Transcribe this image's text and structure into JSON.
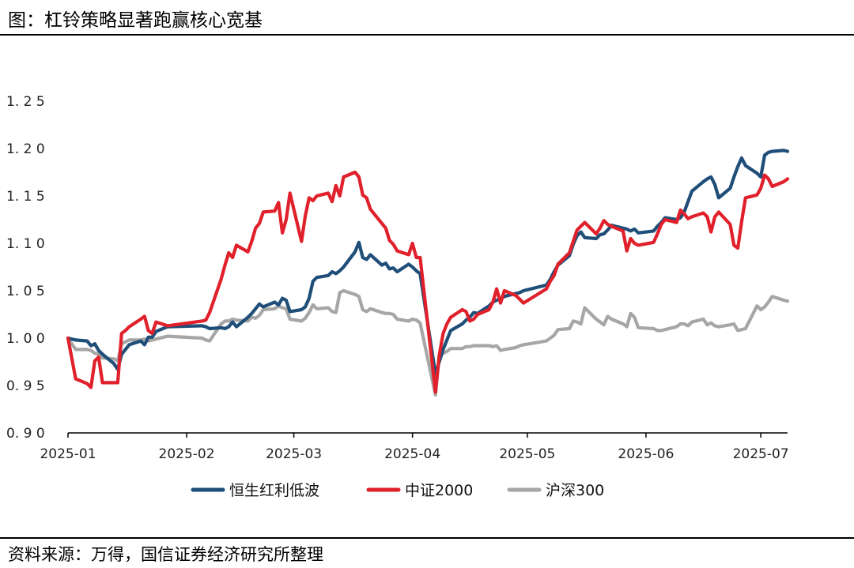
{
  "title": "图：杠铃策略显著跑赢核心宽基",
  "source": "资料来源：万得，国信证券经济研究所整理",
  "chart_data": {
    "type": "line",
    "x": [
      "2025-01-01",
      "2025-01-03",
      "2025-01-06",
      "2025-01-07",
      "2025-01-08",
      "2025-01-09",
      "2025-01-10",
      "2025-01-13",
      "2025-01-14",
      "2025-01-15",
      "2025-01-16",
      "2025-01-17",
      "2025-01-20",
      "2025-01-21",
      "2025-01-22",
      "2025-01-23",
      "2025-01-24",
      "2025-01-27",
      "2025-02-05",
      "2025-02-06",
      "2025-02-07",
      "2025-02-10",
      "2025-02-11",
      "2025-02-12",
      "2025-02-13",
      "2025-02-14",
      "2025-02-17",
      "2025-02-18",
      "2025-02-19",
      "2025-02-20",
      "2025-02-21",
      "2025-02-24",
      "2025-02-25",
      "2025-02-26",
      "2025-02-27",
      "2025-02-28",
      "2025-03-03",
      "2025-03-04",
      "2025-03-05",
      "2025-03-06",
      "2025-03-07",
      "2025-03-10",
      "2025-03-11",
      "2025-03-12",
      "2025-03-13",
      "2025-03-14",
      "2025-03-17",
      "2025-03-18",
      "2025-03-19",
      "2025-03-20",
      "2025-03-21",
      "2025-03-24",
      "2025-03-25",
      "2025-03-26",
      "2025-03-27",
      "2025-03-28",
      "2025-03-31",
      "2025-04-01",
      "2025-04-02",
      "2025-04-03",
      "2025-04-07",
      "2025-04-08",
      "2025-04-09",
      "2025-04-10",
      "2025-04-11",
      "2025-04-14",
      "2025-04-15",
      "2025-04-16",
      "2025-04-17",
      "2025-04-18",
      "2025-04-21",
      "2025-04-22",
      "2025-04-23",
      "2025-04-24",
      "2025-04-25",
      "2025-04-28",
      "2025-04-29",
      "2025-04-30",
      "2025-05-06",
      "2025-05-07",
      "2025-05-08",
      "2025-05-09",
      "2025-05-12",
      "2025-05-13",
      "2025-05-14",
      "2025-05-15",
      "2025-05-16",
      "2025-05-19",
      "2025-05-20",
      "2025-05-21",
      "2025-05-22",
      "2025-05-23",
      "2025-05-26",
      "2025-05-27",
      "2025-05-28",
      "2025-05-29",
      "2025-05-30",
      "2025-06-03",
      "2025-06-04",
      "2025-06-05",
      "2025-06-06",
      "2025-06-09",
      "2025-06-10",
      "2025-06-11",
      "2025-06-12",
      "2025-06-13",
      "2025-06-16",
      "2025-06-17",
      "2025-06-18",
      "2025-06-19",
      "2025-06-20",
      "2025-06-23",
      "2025-06-24",
      "2025-06-25",
      "2025-06-26",
      "2025-06-27",
      "2025-06-30",
      "2025-07-01",
      "2025-07-02",
      "2025-07-03",
      "2025-07-04",
      "2025-07-07",
      "2025-07-08"
    ],
    "series": [
      {
        "name": "恒生红利低波",
        "color": "#1f4e79",
        "values": [
          1.0,
          0.998,
          0.997,
          0.992,
          0.994,
          0.987,
          0.983,
          0.973,
          0.967,
          0.983,
          0.988,
          0.993,
          0.997,
          0.993,
          1.001,
          1.001,
          1.007,
          1.012,
          1.013,
          1.012,
          1.01,
          1.011,
          1.01,
          1.012,
          1.017,
          1.012,
          1.022,
          1.026,
          1.031,
          1.036,
          1.033,
          1.038,
          1.035,
          1.042,
          1.04,
          1.028,
          1.03,
          1.033,
          1.042,
          1.06,
          1.064,
          1.066,
          1.07,
          1.068,
          1.071,
          1.075,
          1.091,
          1.101,
          1.085,
          1.083,
          1.088,
          1.077,
          1.079,
          1.073,
          1.074,
          1.07,
          1.078,
          1.075,
          1.071,
          1.068,
          0.962,
          0.975,
          0.988,
          0.998,
          1.008,
          1.015,
          1.019,
          1.022,
          1.027,
          1.026,
          1.034,
          1.038,
          1.04,
          1.041,
          1.044,
          1.047,
          1.048,
          1.05,
          1.056,
          1.062,
          1.07,
          1.077,
          1.087,
          1.099,
          1.108,
          1.112,
          1.106,
          1.105,
          1.109,
          1.11,
          1.114,
          1.119,
          1.116,
          1.115,
          1.113,
          1.115,
          1.111,
          1.113,
          1.118,
          1.122,
          1.127,
          1.125,
          1.127,
          1.133,
          1.144,
          1.155,
          1.165,
          1.168,
          1.17,
          1.162,
          1.148,
          1.158,
          1.17,
          1.181,
          1.19,
          1.182,
          1.174,
          1.17,
          1.193,
          1.196,
          1.197,
          1.198,
          1.197
        ]
      },
      {
        "name": "中证2000",
        "color": "#e0202a",
        "values": [
          1.0,
          0.957,
          0.952,
          0.948,
          0.976,
          0.98,
          0.953,
          0.953,
          0.953,
          1.005,
          1.008,
          1.012,
          1.02,
          1.023,
          1.008,
          1.005,
          1.017,
          1.013,
          1.018,
          1.019,
          1.027,
          1.062,
          1.077,
          1.09,
          1.085,
          1.098,
          1.091,
          1.102,
          1.116,
          1.121,
          1.133,
          1.134,
          1.143,
          1.111,
          1.125,
          1.153,
          1.102,
          1.129,
          1.148,
          1.145,
          1.15,
          1.153,
          1.144,
          1.161,
          1.15,
          1.17,
          1.175,
          1.17,
          1.151,
          1.148,
          1.136,
          1.121,
          1.116,
          1.103,
          1.099,
          1.092,
          1.088,
          1.1,
          1.085,
          1.085,
          0.943,
          0.982,
          1.005,
          1.015,
          1.022,
          1.03,
          1.028,
          1.018,
          1.02,
          1.025,
          1.03,
          1.038,
          1.052,
          1.037,
          1.05,
          1.045,
          1.041,
          1.037,
          1.052,
          1.06,
          1.066,
          1.078,
          1.09,
          1.102,
          1.114,
          1.118,
          1.122,
          1.11,
          1.116,
          1.124,
          1.12,
          1.118,
          1.113,
          1.092,
          1.105,
          1.1,
          1.098,
          1.101,
          1.11,
          1.12,
          1.125,
          1.122,
          1.135,
          1.131,
          1.126,
          1.128,
          1.132,
          1.128,
          1.112,
          1.128,
          1.133,
          1.12,
          1.098,
          1.095,
          1.123,
          1.148,
          1.151,
          1.158,
          1.172,
          1.168,
          1.16,
          1.165,
          1.168
        ]
      },
      {
        "name": "沪深300",
        "color": "#a6a6a6",
        "values": [
          1.0,
          0.988,
          0.988,
          0.987,
          0.984,
          0.983,
          0.979,
          0.978,
          0.976,
          0.994,
          0.996,
          0.998,
          0.998,
          0.999,
          0.997,
          0.998,
          0.999,
          1.002,
          1.0,
          0.998,
          0.997,
          1.015,
          1.018,
          1.018,
          1.02,
          1.019,
          1.018,
          1.022,
          1.021,
          1.024,
          1.03,
          1.031,
          1.034,
          1.032,
          1.031,
          1.02,
          1.018,
          1.021,
          1.027,
          1.035,
          1.031,
          1.032,
          1.028,
          1.027,
          1.048,
          1.05,
          1.046,
          1.044,
          1.03,
          1.028,
          1.031,
          1.027,
          1.026,
          1.026,
          1.025,
          1.02,
          1.018,
          1.02,
          1.019,
          1.016,
          0.94,
          0.981,
          0.984,
          0.986,
          0.989,
          0.989,
          0.991,
          0.991,
          0.992,
          0.992,
          0.992,
          0.991,
          0.992,
          0.987,
          0.988,
          0.99,
          0.992,
          0.993,
          0.997,
          1.0,
          1.003,
          1.009,
          1.01,
          1.018,
          1.017,
          1.015,
          1.032,
          1.02,
          1.017,
          1.014,
          1.023,
          1.02,
          1.015,
          1.012,
          1.026,
          1.022,
          1.011,
          1.01,
          1.008,
          1.008,
          1.009,
          1.012,
          1.015,
          1.015,
          1.013,
          1.017,
          1.02,
          1.014,
          1.016,
          1.013,
          1.012,
          1.014,
          1.015,
          1.008,
          1.009,
          1.01,
          1.034,
          1.03,
          1.033,
          1.038,
          1.044,
          1.04,
          1.039
        ]
      }
    ],
    "xticks": [
      "2025-01",
      "2025-02",
      "2025-03",
      "2025-04",
      "2025-05",
      "2025-06",
      "2025-07"
    ],
    "yticks": [
      "0.90",
      "0.95",
      "1.00",
      "1.05",
      "1.10",
      "1.15",
      "1.20",
      "1.25"
    ],
    "ylim": [
      0.9,
      1.25
    ],
    "xlabel": "",
    "ylabel": "",
    "grid": false,
    "legend": "bottom"
  }
}
